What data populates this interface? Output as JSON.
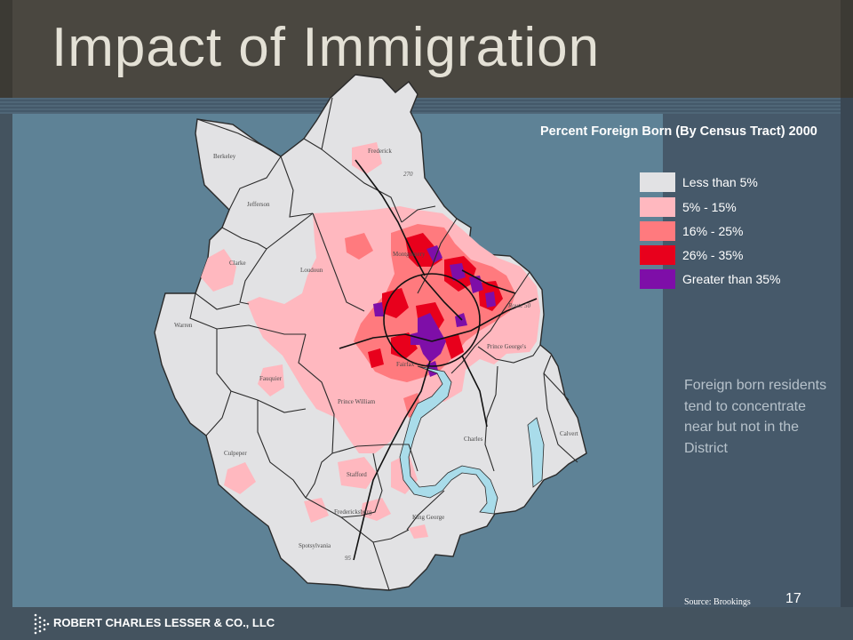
{
  "slide": {
    "title": "Impact of Immigration",
    "page_number": "17",
    "company": "ROBERT CHARLES LESSER & CO., LLC"
  },
  "legend": {
    "title": "Percent Foreign Born (By Census Tract) 2000",
    "items": [
      {
        "label": "Less than 5%",
        "color": "#e2e2e4"
      },
      {
        "label": "5% - 15%",
        "color": "#ffb8bf"
      },
      {
        "label": "16% - 25%",
        "color": "#ff7a7e"
      },
      {
        "label": "26% - 35%",
        "color": "#e8001c"
      },
      {
        "label": "Greater than 35%",
        "color": "#7e0ea8"
      }
    ]
  },
  "caption": "Foreign born residents tend to concentrate near but not in the District",
  "source": "Source: Brookings",
  "map": {
    "counties": [
      "Berkeley",
      "Frederick",
      "Jefferson",
      "Clarke",
      "Loudoun",
      "Montgomery",
      "Warren",
      "Fauquier",
      "Fairfax",
      "Prince George's",
      "Prince William",
      "Culpeper",
      "Stafford",
      "Charles",
      "Calvert",
      "King George",
      "Fredericksburg",
      "Spotsylvania"
    ],
    "route_labels": [
      "270",
      "Route 50",
      "95"
    ],
    "colors": {
      "water": "#a9dcea",
      "border": "#2a2a2a",
      "road": "#111111"
    }
  }
}
